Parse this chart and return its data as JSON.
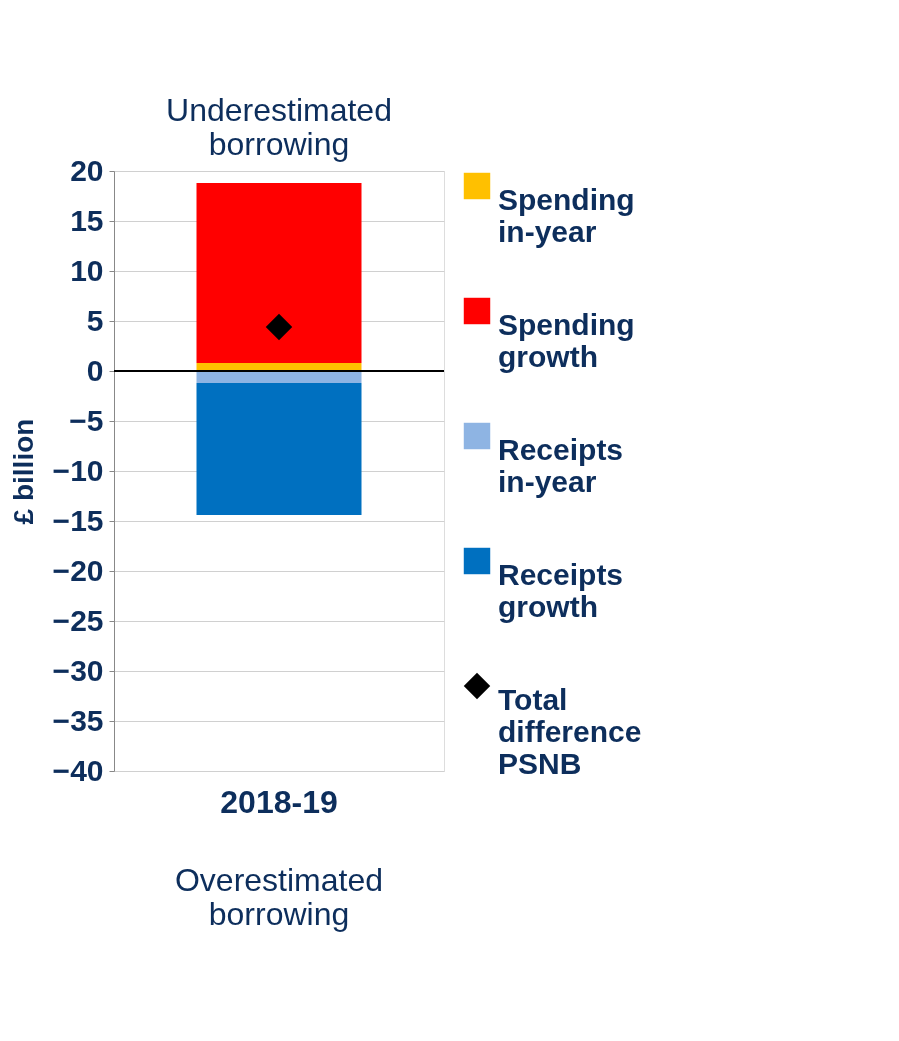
{
  "chart_data": {
    "type": "bar",
    "stacked": true,
    "ylabel": "£ billion",
    "categories": [
      "2018-19"
    ],
    "series": [
      {
        "name": "Spending in-year",
        "color": "#ffc000",
        "values": [
          0.8
        ]
      },
      {
        "name": "Spending growth",
        "color": "#ff0000",
        "values": [
          18.0
        ]
      },
      {
        "name": "Receipts in-year",
        "color": "#8eb4e3",
        "values": [
          -1.2
        ]
      },
      {
        "name": "Receipts growth",
        "color": "#0070c0",
        "values": [
          -13.2
        ]
      },
      {
        "name": "Total difference PSNB",
        "type": "scatter",
        "marker": "diamond",
        "color": "#000000",
        "values": [
          4.4
        ]
      }
    ],
    "ylim": [
      -40,
      20
    ],
    "yticks": [
      -40,
      -35,
      -30,
      -25,
      -20,
      -15,
      -10,
      -5,
      0,
      5,
      10,
      15,
      20
    ],
    "grid": "y",
    "legend": "right",
    "ref_lines": [
      {
        "axis": "y",
        "value": 0,
        "color": "#000000"
      }
    ],
    "annotations": [
      "Underestimated borrowing",
      "Overestimated borrowing"
    ]
  }
}
